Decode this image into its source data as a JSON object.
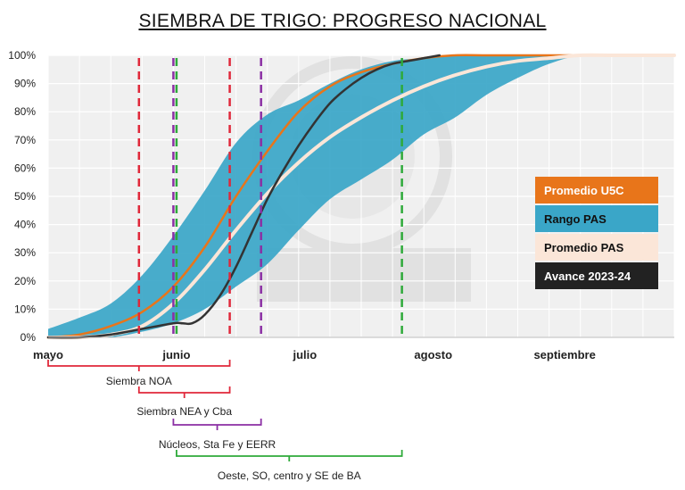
{
  "chart_data": {
    "type": "line",
    "title": "SIEMBRA DE TRIGO: PROGRESO NACIONAL",
    "x_ticks": [
      "mayo",
      "junio",
      "julio",
      "agosto",
      "septiembre"
    ],
    "y_ticks": [
      "0%",
      "10%",
      "20%",
      "30%",
      "40%",
      "50%",
      "60%",
      "70%",
      "80%",
      "90%",
      "100%"
    ],
    "ylim": [
      0,
      100
    ],
    "x_unit": "semanas desde inicio de mayo",
    "xlim": [
      0,
      20
    ],
    "grid": true,
    "colors": {
      "promedio_u5c": "#e8751a",
      "rango_pas": "#3aa6c8",
      "promedio_pas": "#fbe6d8",
      "avance": "#333333"
    },
    "range": {
      "name": "Rango PAS",
      "x": [
        0,
        1,
        2,
        3,
        4,
        5,
        6,
        7,
        8,
        9,
        10,
        11,
        12,
        13,
        14,
        15,
        16,
        17,
        18,
        19,
        20
      ],
      "upper": [
        3,
        7,
        12,
        22,
        36,
        52,
        69,
        79,
        84,
        90,
        95,
        98,
        99,
        100,
        100,
        100,
        100,
        100,
        100,
        100,
        100
      ],
      "lower": [
        0,
        0,
        0,
        2,
        5,
        10,
        18,
        26,
        38,
        49,
        56,
        63,
        72,
        78,
        86,
        92,
        97,
        100,
        100,
        100,
        100
      ]
    },
    "series": [
      {
        "name": "Promedio U5C",
        "x": [
          0,
          1,
          2,
          3,
          4,
          5,
          6,
          7,
          8,
          9,
          10,
          11,
          12,
          13,
          14,
          15,
          16,
          17,
          18,
          19,
          20
        ],
        "values": [
          0,
          1,
          4,
          9,
          18,
          32,
          50,
          66,
          80,
          89,
          94,
          97,
          99,
          100,
          100,
          100,
          100,
          100,
          100,
          100,
          100
        ]
      },
      {
        "name": "Promedio PAS",
        "x": [
          0,
          1,
          2,
          3,
          4,
          5,
          6,
          7,
          8,
          9,
          10,
          11,
          12,
          13,
          14,
          15,
          16,
          17,
          18,
          19,
          20
        ],
        "values": [
          0,
          0,
          1,
          4,
          12,
          24,
          38,
          51,
          62,
          71,
          78,
          84,
          89,
          93,
          96,
          98,
          99,
          100,
          100,
          100,
          100
        ]
      },
      {
        "name": "Avance 2023-24",
        "x": [
          0,
          1,
          2,
          3,
          4,
          4.3,
          4.6,
          5,
          5.5,
          6,
          6.5,
          7,
          7.5,
          8,
          8.5,
          9,
          9.5,
          10,
          10.5,
          11,
          11.5,
          12,
          12.5
        ],
        "values": [
          0,
          0,
          1,
          3,
          5,
          5,
          5,
          8,
          15,
          25,
          37,
          49,
          59,
          68,
          76,
          83,
          88,
          92,
          95,
          97,
          98,
          99,
          100
        ]
      }
    ],
    "vlines": [
      {
        "x": 2.9,
        "color": "#e0283a",
        "label": "Siembra NOA"
      },
      {
        "x": 5.8,
        "color": "#e0283a"
      },
      {
        "x": 4.0,
        "color": "#8b2fa4"
      },
      {
        "x": 6.8,
        "color": "#8b2fa4"
      },
      {
        "x": 4.1,
        "color": "#2eaa3a"
      },
      {
        "x": 11.3,
        "color": "#2eaa3a"
      }
    ],
    "legend": {
      "placement": "right",
      "items": [
        {
          "label": "Promedio U5C",
          "bg": "#e8751a",
          "fg": "#ffffff"
        },
        {
          "label": "Rango PAS",
          "bg": "#3aa6c8",
          "fg": "#111111"
        },
        {
          "label": "Promedio PAS",
          "bg": "#fbe6d8",
          "fg": "#111111"
        },
        {
          "label": "Avance 2023-24",
          "bg": "#222222",
          "fg": "#ffffff"
        }
      ]
    },
    "stages": [
      {
        "label": "Siembra NOA",
        "x_start": 0,
        "x_end": 5.8,
        "color": "#e0283a"
      },
      {
        "label": "Siembra NEA y Cba",
        "x_start": 2.9,
        "x_end": 5.8,
        "color": "#e0283a"
      },
      {
        "label": "Núcleos, Sta Fe y EERR",
        "x_start": 4.0,
        "x_end": 6.8,
        "color": "#8b2fa4"
      },
      {
        "label": "Oeste, SO, centro y SE de BA",
        "x_start": 4.1,
        "x_end": 11.3,
        "color": "#2eaa3a"
      }
    ]
  }
}
